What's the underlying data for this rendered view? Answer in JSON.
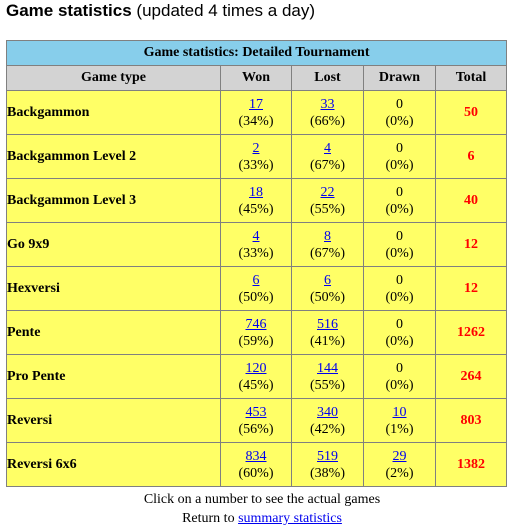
{
  "heading": {
    "title": "Game statistics",
    "subtitle": "(updated 4 times a day)"
  },
  "table": {
    "caption": "Game statistics: Detailed Tournament",
    "columns": [
      "Game type",
      "Won",
      "Lost",
      "Drawn",
      "Total"
    ],
    "rows": [
      {
        "game": "Backgammon",
        "won": "17",
        "won_pct": "(34%)",
        "lost": "33",
        "lost_pct": "(66%)",
        "drawn": "0",
        "drawn_pct": "(0%)",
        "drawn_link": false,
        "total": "50"
      },
      {
        "game": "Backgammon Level 2",
        "won": "2",
        "won_pct": "(33%)",
        "lost": "4",
        "lost_pct": "(67%)",
        "drawn": "0",
        "drawn_pct": "(0%)",
        "drawn_link": false,
        "total": "6"
      },
      {
        "game": "Backgammon Level 3",
        "won": "18",
        "won_pct": "(45%)",
        "lost": "22",
        "lost_pct": "(55%)",
        "drawn": "0",
        "drawn_pct": "(0%)",
        "drawn_link": false,
        "total": "40"
      },
      {
        "game": "Go 9x9",
        "won": "4",
        "won_pct": "(33%)",
        "lost": "8",
        "lost_pct": "(67%)",
        "drawn": "0",
        "drawn_pct": "(0%)",
        "drawn_link": false,
        "total": "12"
      },
      {
        "game": "Hexversi",
        "won": "6",
        "won_pct": "(50%)",
        "lost": "6",
        "lost_pct": "(50%)",
        "drawn": "0",
        "drawn_pct": "(0%)",
        "drawn_link": false,
        "total": "12"
      },
      {
        "game": "Pente",
        "won": "746",
        "won_pct": "(59%)",
        "lost": "516",
        "lost_pct": "(41%)",
        "drawn": "0",
        "drawn_pct": "(0%)",
        "drawn_link": false,
        "total": "1262"
      },
      {
        "game": "Pro Pente",
        "won": "120",
        "won_pct": "(45%)",
        "lost": "144",
        "lost_pct": "(55%)",
        "drawn": "0",
        "drawn_pct": "(0%)",
        "drawn_link": false,
        "total": "264"
      },
      {
        "game": "Reversi",
        "won": "453",
        "won_pct": "(56%)",
        "lost": "340",
        "lost_pct": "(42%)",
        "drawn": "10",
        "drawn_pct": "(1%)",
        "drawn_link": true,
        "total": "803"
      },
      {
        "game": "Reversi 6x6",
        "won": "834",
        "won_pct": "(60%)",
        "lost": "519",
        "lost_pct": "(38%)",
        "drawn": "29",
        "drawn_pct": "(2%)",
        "drawn_link": true,
        "total": "1382"
      }
    ]
  },
  "footer": {
    "hint": "Click on a number to see the actual games",
    "return_prefix": "Return to",
    "return_link": "summary statistics"
  },
  "colors": {
    "caption_bg": "#87ceeb",
    "header_bg": "#d3d3d3",
    "row_bg": "#ffff66",
    "total_text": "#ff0000",
    "link": "#0000ee"
  }
}
